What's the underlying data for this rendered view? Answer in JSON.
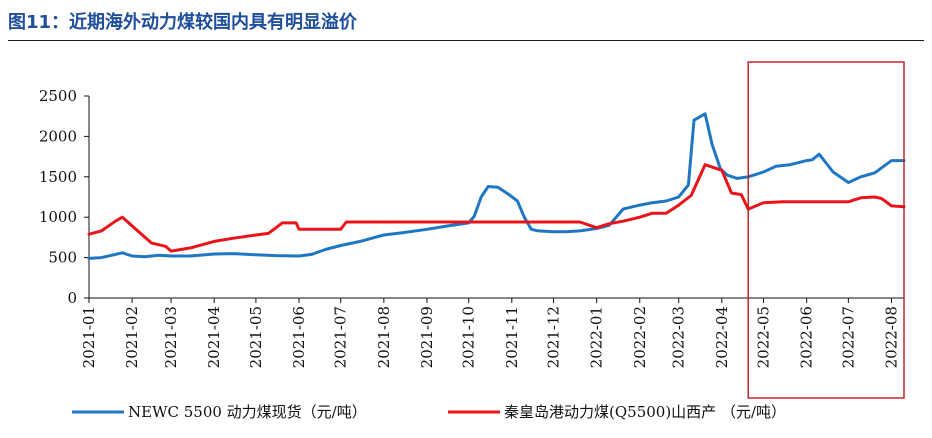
{
  "figure": {
    "title": "图11：近期海外动力煤较国内具有明显溢价"
  },
  "chart_data": {
    "type": "line",
    "title": "近期海外动力煤较国内具有明显溢价",
    "ylim": [
      0,
      2500
    ],
    "yticks": [
      0,
      500,
      1000,
      1500,
      2000,
      2500
    ],
    "x_domain": [
      "2021-01-01",
      "2022-08-10"
    ],
    "x_ticks": [
      "2021-01",
      "2021-02",
      "2021-03",
      "2021-04",
      "2021-05",
      "2021-06",
      "2021-07",
      "2021-08",
      "2021-09",
      "2021-10",
      "2021-11",
      "2021-12",
      "2022-01",
      "2022-02",
      "2022-03",
      "2022-04",
      "2022-05",
      "2022-06",
      "2022-07",
      "2022-08"
    ],
    "highlight": {
      "from": "2022-04-20",
      "to": "2022-08-10"
    },
    "colors": {
      "newc": "#1f77c4",
      "qhd": "#e8141a",
      "highlight": "#c0181c"
    },
    "series": [
      {
        "name": "NEWC 5500 动力煤现货（元/吨）",
        "color": "#1f77c4",
        "x": [
          "2021-01-01",
          "2021-01-10",
          "2021-01-20",
          "2021-01-25",
          "2021-02-01",
          "2021-02-10",
          "2021-02-20",
          "2021-03-01",
          "2021-03-15",
          "2021-04-01",
          "2021-04-15",
          "2021-05-01",
          "2021-05-15",
          "2021-06-01",
          "2021-06-10",
          "2021-06-20",
          "2021-07-01",
          "2021-07-15",
          "2021-08-01",
          "2021-08-15",
          "2021-09-01",
          "2021-09-15",
          "2021-10-01",
          "2021-10-05",
          "2021-10-10",
          "2021-10-15",
          "2021-10-22",
          "2021-10-30",
          "2021-11-05",
          "2021-11-10",
          "2021-11-15",
          "2021-11-20",
          "2021-12-01",
          "2021-12-10",
          "2021-12-20",
          "2022-01-01",
          "2022-01-10",
          "2022-01-20",
          "2022-02-01",
          "2022-02-10",
          "2022-02-20",
          "2022-03-01",
          "2022-03-08",
          "2022-03-12",
          "2022-03-20",
          "2022-03-25",
          "2022-03-31",
          "2022-04-05",
          "2022-04-12",
          "2022-04-20",
          "2022-05-01",
          "2022-05-10",
          "2022-05-20",
          "2022-06-01",
          "2022-06-05",
          "2022-06-10",
          "2022-06-20",
          "2022-07-01",
          "2022-07-10",
          "2022-07-20",
          "2022-08-01",
          "2022-08-10"
        ],
        "y": [
          490,
          500,
          540,
          560,
          520,
          510,
          530,
          520,
          520,
          545,
          550,
          535,
          525,
          520,
          540,
          600,
          650,
          700,
          780,
          810,
          850,
          890,
          930,
          1010,
          1250,
          1380,
          1370,
          1280,
          1200,
          1000,
          850,
          830,
          820,
          820,
          830,
          860,
          900,
          1100,
          1150,
          1180,
          1200,
          1250,
          1400,
          2200,
          2280,
          1900,
          1600,
          1520,
          1480,
          1500,
          1560,
          1630,
          1650,
          1700,
          1710,
          1780,
          1560,
          1430,
          1500,
          1550,
          1700,
          1700
        ]
      },
      {
        "name": "秦皇岛港动力煤(Q5500)山西产（元/吨）",
        "color": "#e8141a",
        "x": [
          "2021-01-01",
          "2021-01-10",
          "2021-01-20",
          "2021-01-25",
          "2021-02-05",
          "2021-02-15",
          "2021-02-25",
          "2021-03-01",
          "2021-03-15",
          "2021-04-01",
          "2021-04-15",
          "2021-05-01",
          "2021-05-10",
          "2021-05-20",
          "2021-05-30",
          "2021-06-01",
          "2021-06-15",
          "2021-07-01",
          "2021-07-05",
          "2021-07-15",
          "2021-08-01",
          "2021-08-15",
          "2021-09-01",
          "2021-09-15",
          "2021-10-01",
          "2021-10-15",
          "2021-11-01",
          "2021-11-15",
          "2021-12-01",
          "2021-12-20",
          "2022-01-01",
          "2022-01-10",
          "2022-01-20",
          "2022-02-01",
          "2022-02-10",
          "2022-02-20",
          "2022-03-01",
          "2022-03-10",
          "2022-03-20",
          "2022-03-25",
          "2022-04-01",
          "2022-04-08",
          "2022-04-15",
          "2022-04-20",
          "2022-05-01",
          "2022-05-15",
          "2022-06-01",
          "2022-06-15",
          "2022-07-01",
          "2022-07-10",
          "2022-07-20",
          "2022-07-25",
          "2022-08-01",
          "2022-08-10"
        ],
        "y": [
          790,
          830,
          950,
          1000,
          830,
          680,
          640,
          580,
          620,
          700,
          740,
          780,
          800,
          930,
          930,
          850,
          850,
          850,
          940,
          940,
          940,
          940,
          940,
          940,
          940,
          940,
          940,
          940,
          940,
          940,
          870,
          920,
          950,
          1000,
          1050,
          1050,
          1150,
          1270,
          1650,
          1620,
          1580,
          1300,
          1280,
          1100,
          1180,
          1190,
          1190,
          1190,
          1190,
          1240,
          1250,
          1230,
          1140,
          1130
        ]
      }
    ],
    "legend": [
      {
        "label": "NEWC 5500 动力煤现货（元/吨）"
      },
      {
        "label": "秦皇岛港动力煤(Q5500)山西产 （元/吨）"
      }
    ]
  }
}
